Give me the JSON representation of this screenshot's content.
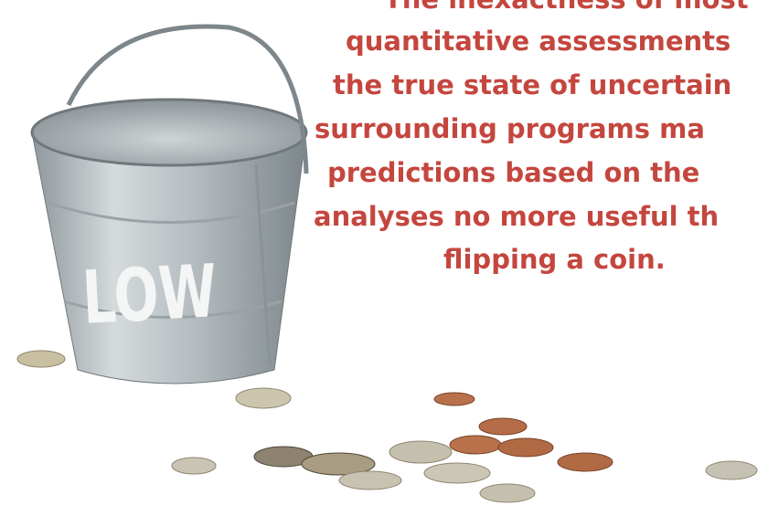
{
  "bucket_label": "LOW",
  "quote": {
    "lines": [
      "The inexactness of most",
      "quantitative assessments",
      "the true state of uncertain",
      "surrounding programs ma",
      "predictions based on the",
      "analyses no more useful th",
      "flipping a coin."
    ]
  }
}
